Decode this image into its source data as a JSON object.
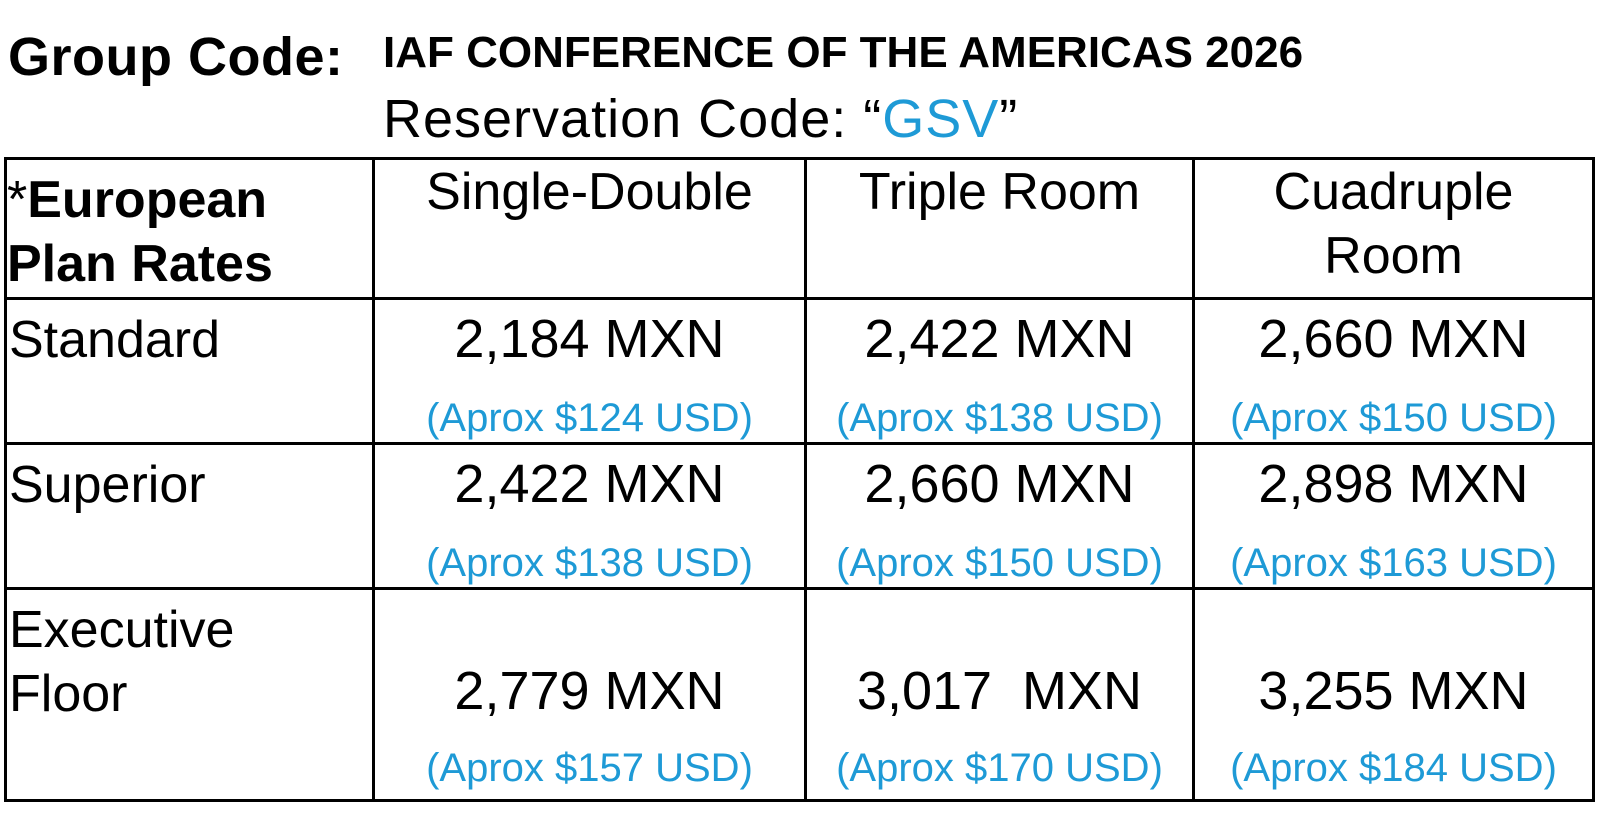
{
  "header": {
    "group_label": "Group Code:",
    "conference_title": "IAF CONFERENCE OF THE AMERICAS 2026",
    "reservation_prefix": "Reservation Code: “",
    "reservation_code": "GSV",
    "reservation_suffix": "”"
  },
  "table": {
    "corner": {
      "asterisk": "*",
      "line1": "European",
      "line2": "Plan Rates"
    },
    "columns": [
      "Single-Double",
      "Triple Room",
      "Cuadruple Room"
    ],
    "rows": [
      {
        "label": "Standard",
        "cells": [
          {
            "mxn": "2,184 MXN",
            "usd": "(Aprox $124 USD)"
          },
          {
            "mxn": "2,422 MXN",
            "usd": "(Aprox $138 USD)"
          },
          {
            "mxn": "2,660 MXN",
            "usd": "(Aprox $150 USD)"
          }
        ]
      },
      {
        "label": "Superior",
        "cells": [
          {
            "mxn": "2,422 MXN",
            "usd": "(Aprox $138 USD)"
          },
          {
            "mxn": "2,660 MXN",
            "usd": "(Aprox $150 USD)"
          },
          {
            "mxn": "2,898 MXN",
            "usd": "(Aprox $163 USD)"
          }
        ]
      },
      {
        "label": "Executive Floor",
        "cells": [
          {
            "mxn": "2,779 MXN",
            "usd": "(Aprox $157 USD)"
          },
          {
            "mxn": "3,017  MXN",
            "usd": "(Aprox $170 USD)"
          },
          {
            "mxn": "3,255 MXN",
            "usd": "(Aprox $184 USD)"
          }
        ]
      }
    ]
  },
  "colors": {
    "accent": "#1e9ad6",
    "text": "#000000",
    "border": "#000000"
  }
}
